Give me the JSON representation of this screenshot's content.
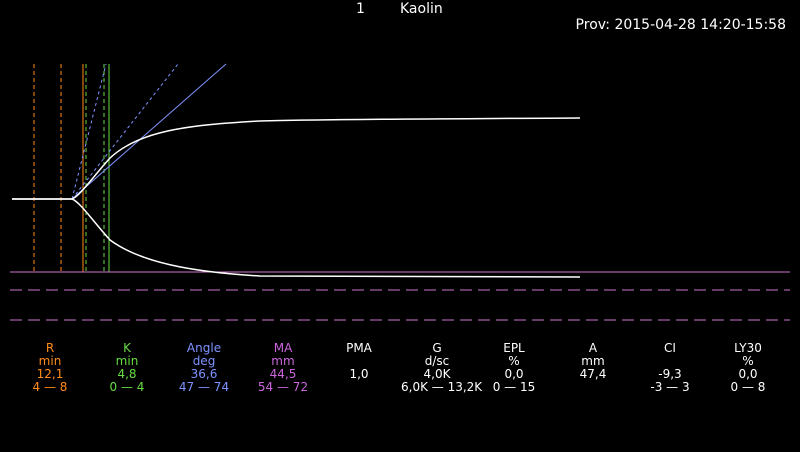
{
  "header": {
    "channel": "1",
    "test": "Kaolin",
    "prov": "Prov: 2015-04-28 14:20-15:58"
  },
  "colors": {
    "R": "#ff8c1a",
    "K": "#66dd44",
    "Angle": "#7f93ff",
    "MA": "#cc66dd",
    "default": "#ffffff",
    "baseline": "#cc77cc",
    "trace": "#ffffff"
  },
  "parameters": [
    {
      "key": "R",
      "name": "R",
      "unit": "min",
      "value": "12,1",
      "range": "4 — 8",
      "color": "#ff8c1a"
    },
    {
      "key": "K",
      "name": "K",
      "unit": "min",
      "value": "4,8",
      "range": "0 — 4",
      "color": "#66dd44"
    },
    {
      "key": "Angle",
      "name": "Angle",
      "unit": "deg",
      "value": "36,6",
      "range": "47 — 74",
      "color": "#7f93ff"
    },
    {
      "key": "MA",
      "name": "MA",
      "unit": "mm",
      "value": "44,5",
      "range": "54 — 72",
      "color": "#cc66dd"
    },
    {
      "key": "PMA",
      "name": "PMA",
      "unit": "",
      "value": "1,0",
      "range": "",
      "color": "#ffffff"
    },
    {
      "key": "G",
      "name": "G",
      "unit": "d/sc",
      "value": "4,0K",
      "range": "6,0K — 13,2K",
      "color": "#ffffff"
    },
    {
      "key": "EPL",
      "name": "EPL",
      "unit": "%",
      "value": "0,0",
      "range": "0 — 15",
      "color": "#ffffff"
    },
    {
      "key": "A",
      "name": "A",
      "unit": "mm",
      "value": "47,4",
      "range": "",
      "color": "#ffffff"
    },
    {
      "key": "CI",
      "name": "CI",
      "unit": "",
      "value": "-9,3",
      "range": "-3 — 3",
      "color": "#ffffff"
    },
    {
      "key": "LY30",
      "name": "LY30",
      "unit": "%",
      "value": "0,0",
      "range": "0 — 8",
      "color": "#ffffff"
    }
  ]
}
